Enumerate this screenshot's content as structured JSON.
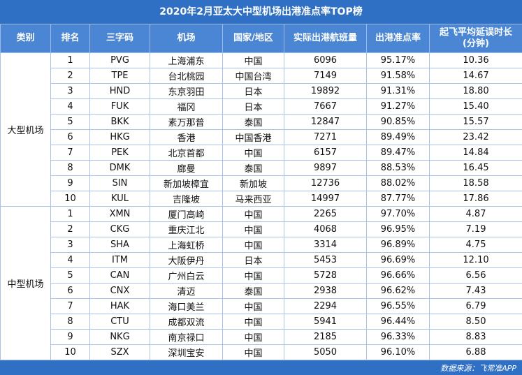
{
  "header": {
    "title": "2020年2月亚太大中型机场出港准点率TOP榜"
  },
  "table": {
    "columns": [
      "类别",
      "排名",
      "三字码",
      "机场",
      "国家/地区",
      "实际出港航班量",
      "出港准点率",
      "起飞平均延误时长\n(分钟)"
    ],
    "groups": [
      {
        "name": "大型机场",
        "rows": [
          [
            "1",
            "PVG",
            "上海浦东",
            "中国",
            "6096",
            "95.17%",
            "10.36"
          ],
          [
            "2",
            "TPE",
            "台北桃园",
            "中国台湾",
            "7149",
            "91.58%",
            "14.67"
          ],
          [
            "3",
            "HND",
            "东京羽田",
            "日本",
            "19892",
            "91.31%",
            "18.80"
          ],
          [
            "4",
            "FUK",
            "福冈",
            "日本",
            "7667",
            "91.27%",
            "15.40"
          ],
          [
            "5",
            "BKK",
            "素万那普",
            "泰国",
            "12847",
            "90.85%",
            "15.57"
          ],
          [
            "6",
            "HKG",
            "香港",
            "中国香港",
            "7271",
            "89.49%",
            "23.42"
          ],
          [
            "7",
            "PEK",
            "北京首都",
            "中国",
            "6157",
            "89.47%",
            "14.84"
          ],
          [
            "8",
            "DMK",
            "廊曼",
            "泰国",
            "9897",
            "88.53%",
            "16.45"
          ],
          [
            "9",
            "SIN",
            "新加坡樟宜",
            "新加坡",
            "12736",
            "88.02%",
            "18.58"
          ],
          [
            "10",
            "KUL",
            "吉隆坡",
            "马来西亚",
            "14997",
            "87.77%",
            "17.86"
          ]
        ]
      },
      {
        "name": "中型机场",
        "rows": [
          [
            "1",
            "XMN",
            "厦门高崎",
            "中国",
            "2265",
            "97.70%",
            "4.87"
          ],
          [
            "2",
            "CKG",
            "重庆江北",
            "中国",
            "4068",
            "96.95%",
            "7.19"
          ],
          [
            "3",
            "SHA",
            "上海虹桥",
            "中国",
            "3314",
            "96.89%",
            "4.75"
          ],
          [
            "4",
            "ITM",
            "大阪伊丹",
            "日本",
            "5453",
            "96.69%",
            "12.10"
          ],
          [
            "5",
            "CAN",
            "广州白云",
            "中国",
            "5728",
            "96.66%",
            "6.56"
          ],
          [
            "6",
            "CNX",
            "清迈",
            "泰国",
            "2938",
            "96.62%",
            "7.43"
          ],
          [
            "7",
            "HAK",
            "海口美兰",
            "中国",
            "2294",
            "96.55%",
            "6.79"
          ],
          [
            "8",
            "CTU",
            "成都双流",
            "中国",
            "5941",
            "96.44%",
            "8.50"
          ],
          [
            "9",
            "NKG",
            "南京禄口",
            "中国",
            "2185",
            "96.33%",
            "8.83"
          ],
          [
            "10",
            "SZX",
            "深圳宝安",
            "中国",
            "5050",
            "96.10%",
            "6.88"
          ]
        ]
      }
    ]
  },
  "footer": {
    "source": "数据来源：飞常准APP"
  }
}
